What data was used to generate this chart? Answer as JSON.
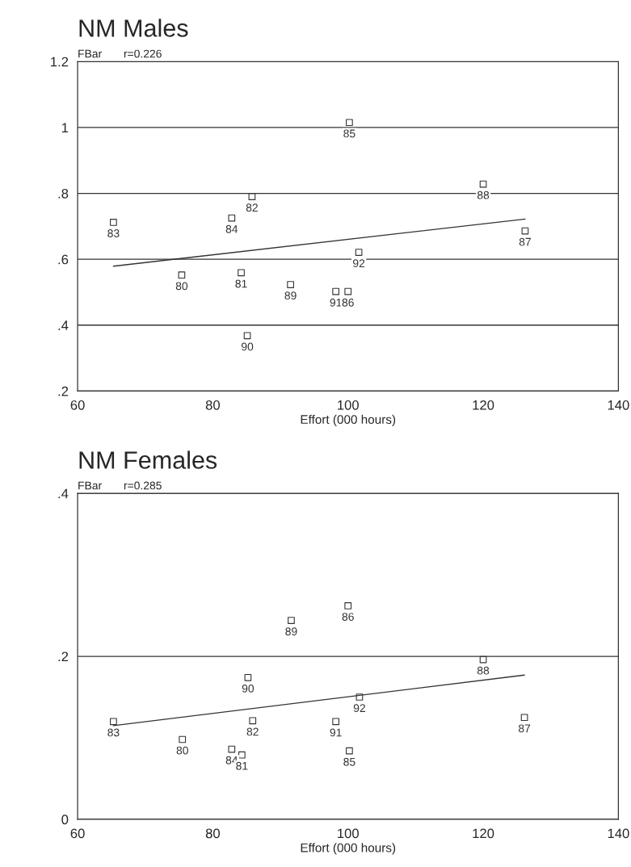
{
  "chart_data": [
    {
      "type": "scatter",
      "title": "NM Males",
      "ylabel": "FBar",
      "xlabel": "Effort (000 hours)",
      "annotations": [
        "r=0.226",
        {
          "text": "85",
          "x": 100.2,
          "y": 1.015
        },
        {
          "text": "88",
          "x": 120.0,
          "y": 0.828
        },
        {
          "text": "82",
          "x": 85.8,
          "y": 0.79
        },
        {
          "text": "84",
          "x": 82.8,
          "y": 0.725
        },
        {
          "text": "83",
          "x": 65.3,
          "y": 0.712
        },
        {
          "text": "87",
          "x": 126.2,
          "y": 0.686
        },
        {
          "text": "92",
          "x": 101.6,
          "y": 0.621
        },
        {
          "text": "80",
          "x": 75.4,
          "y": 0.552
        },
        {
          "text": "81",
          "x": 84.2,
          "y": 0.559
        },
        {
          "text": "89",
          "x": 91.5,
          "y": 0.523
        },
        {
          "text": "91",
          "x": 98.2,
          "y": 0.502
        },
        {
          "text": "86",
          "x": 100.0,
          "y": 0.502
        },
        {
          "text": "90",
          "x": 85.1,
          "y": 0.368
        }
      ],
      "xlim": [
        60,
        140
      ],
      "xticks": [
        60,
        80,
        100,
        120,
        140
      ],
      "ylim": [
        0.2,
        1.2
      ],
      "yticks": [
        {
          "value": 0.2,
          "label": ".2"
        },
        {
          "value": 0.4,
          "label": ".4"
        },
        {
          "value": 0.6,
          "label": ".6"
        },
        {
          "value": 0.8,
          "label": ".8"
        },
        1,
        {
          "value": 1.2,
          "label": "1.2"
        }
      ],
      "grid": "y",
      "series": [
        {
          "color": "#333333",
          "marker": "square",
          "x": [
            100.2,
            120.0,
            85.8,
            82.8,
            65.3,
            126.2,
            101.6,
            75.4,
            84.2,
            91.5,
            98.2,
            100.0,
            85.1
          ],
          "values": [
            1.015,
            0.828,
            0.79,
            0.725,
            0.712,
            0.686,
            0.621,
            0.552,
            0.559,
            0.523,
            0.502,
            0.502,
            0.368
          ]
        },
        {
          "type": "line",
          "color": "#333333",
          "x": [
            65.3,
            126.2
          ],
          "values": [
            0.579,
            0.722
          ]
        }
      ]
    },
    {
      "type": "scatter",
      "title": "NM Females",
      "ylabel": "FBar",
      "xlabel": "Effort (000 hours)",
      "annotations": [
        "r=0.285",
        {
          "text": "86",
          "x": 100.0,
          "y": 0.262
        },
        {
          "text": "89",
          "x": 91.6,
          "y": 0.244
        },
        {
          "text": "88",
          "x": 120.0,
          "y": 0.196
        },
        {
          "text": "90",
          "x": 85.2,
          "y": 0.174
        },
        {
          "text": "92",
          "x": 101.7,
          "y": 0.15
        },
        {
          "text": "83",
          "x": 65.3,
          "y": 0.12
        },
        {
          "text": "82",
          "x": 85.9,
          "y": 0.121
        },
        {
          "text": "91",
          "x": 98.2,
          "y": 0.12
        },
        {
          "text": "87",
          "x": 126.1,
          "y": 0.125
        },
        {
          "text": "80",
          "x": 75.5,
          "y": 0.098
        },
        {
          "text": "84",
          "x": 82.8,
          "y": 0.086
        },
        {
          "text": "81",
          "x": 84.3,
          "y": 0.079
        },
        {
          "text": "85",
          "x": 100.2,
          "y": 0.084
        }
      ],
      "xlim": [
        60,
        140
      ],
      "xticks": [
        60,
        80,
        100,
        120,
        140
      ],
      "ylim": [
        0,
        0.4
      ],
      "yticks": [
        0,
        {
          "value": 0.2,
          "label": ".2"
        },
        {
          "value": 0.4,
          "label": ".4"
        }
      ],
      "grid": "y",
      "series": [
        {
          "color": "#333333",
          "marker": "square",
          "x": [
            100.0,
            91.6,
            120.0,
            85.2,
            101.7,
            65.3,
            85.9,
            98.2,
            126.1,
            75.5,
            82.8,
            84.3,
            100.2
          ],
          "values": [
            0.262,
            0.244,
            0.196,
            0.174,
            0.15,
            0.12,
            0.121,
            0.12,
            0.125,
            0.098,
            0.086,
            0.079,
            0.084
          ]
        },
        {
          "type": "line",
          "color": "#333333",
          "x": [
            65.3,
            126.1
          ],
          "values": [
            0.115,
            0.177
          ]
        }
      ]
    }
  ]
}
